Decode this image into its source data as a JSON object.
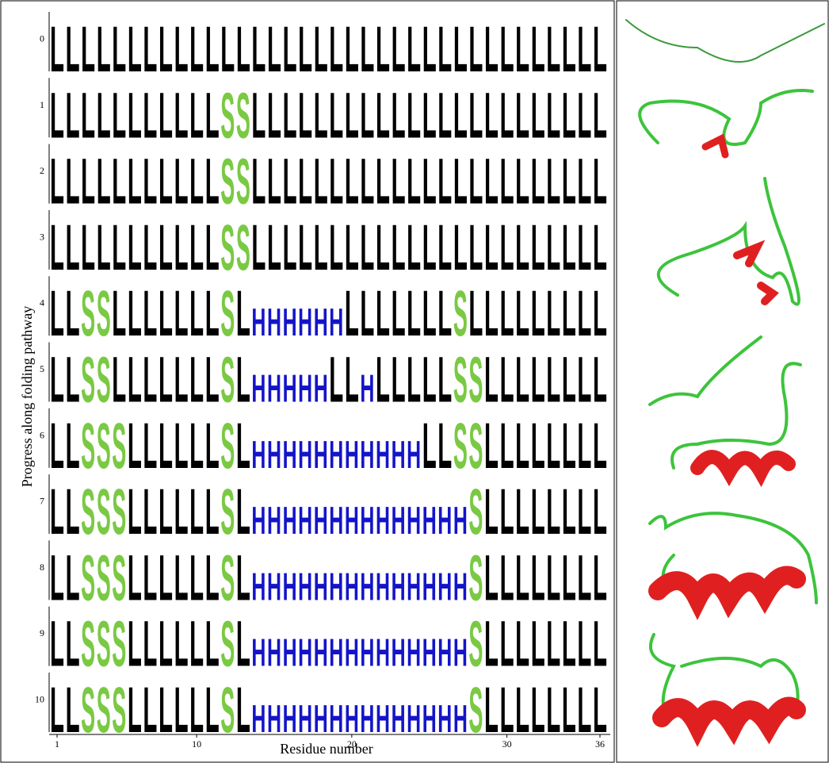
{
  "y_label": "Progress along folding pathway",
  "x_label": "Residue number",
  "x_ticks": [
    1,
    10,
    20,
    30,
    36
  ],
  "rows": [
    {
      "label": "0",
      "states": "LLLLLLLLLLLLLLLLLLLLLLLLLLLLLLLLLLLL"
    },
    {
      "label": "1",
      "states": "LLLLLLLLLLLSSLLLLLLLLLLLLLLLLLLLLLLL"
    },
    {
      "label": "2",
      "states": "LLLLLLLLLLLSSLLLLLLLLLLLLLLLLLLLLLLL"
    },
    {
      "label": "3",
      "states": "LLLLLLLLLLLSSLLLLLLLLLLLLLLLLLLLLLLL"
    },
    {
      "label": "4",
      "states": "LLSSLLLLLLLSLHHHHHHLLLLLLLSLLLLLLLLL"
    },
    {
      "label": "5",
      "states": "LLSSLLLLLLLSLHHHHHLLHLLLLLSSLLLLLLLL"
    },
    {
      "label": "6",
      "states": "LLSSSLLLLLLSLHHHHHHHHHHHLLSSLLLLLLLL"
    },
    {
      "label": "7",
      "states": "LLSSSLLLLLLSLHHHHHHHHHHHHHHSLLLLLLLL"
    },
    {
      "label": "8",
      "states": "LLSSSLLLLLLSLHHHHHHHHHHHHHHSLLLLLLLL"
    },
    {
      "label": "9",
      "states": "LLSSSLLLLLLSLHHHHHHHHHHHHHHSLLLLLLLL"
    },
    {
      "label": "10",
      "states": "LLSSSLLLLLLSLHHHHHHHHHHHHHHSLLLLLLLL"
    }
  ]
}
